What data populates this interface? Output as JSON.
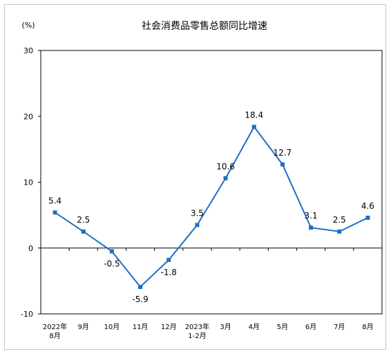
{
  "chart_data": {
    "type": "line",
    "title": "社会消费品零售总额同比增速",
    "unit_label": "(%)",
    "xlabel": "",
    "ylabel": "",
    "ylim": [
      -10,
      30
    ],
    "yticks": [
      30,
      20,
      10,
      0,
      -10
    ],
    "grid": false,
    "line_color": "#1e6fc7",
    "categories": [
      [
        "2022年",
        "8月"
      ],
      [
        "9月"
      ],
      [
        "10月"
      ],
      [
        "11月"
      ],
      [
        "12月"
      ],
      [
        "2023年",
        "1-2月"
      ],
      [
        "3月"
      ],
      [
        "4月"
      ],
      [
        "5月"
      ],
      [
        "6月"
      ],
      [
        "7月"
      ],
      [
        "8月"
      ]
    ],
    "values": [
      5.4,
      2.5,
      -0.5,
      -5.9,
      -1.8,
      3.5,
      10.6,
      18.4,
      12.7,
      3.1,
      2.5,
      4.6
    ],
    "data_labels": [
      "5.4",
      "2.5",
      "-0.5",
      "-5.9",
      "-1.8",
      "3.5",
      "10.6",
      "18.4",
      "12.7",
      "3.1",
      "2.5",
      "4.6"
    ],
    "label_position": [
      "above",
      "above",
      "below",
      "below",
      "below",
      "above",
      "above",
      "above",
      "above",
      "above",
      "above",
      "above"
    ]
  }
}
